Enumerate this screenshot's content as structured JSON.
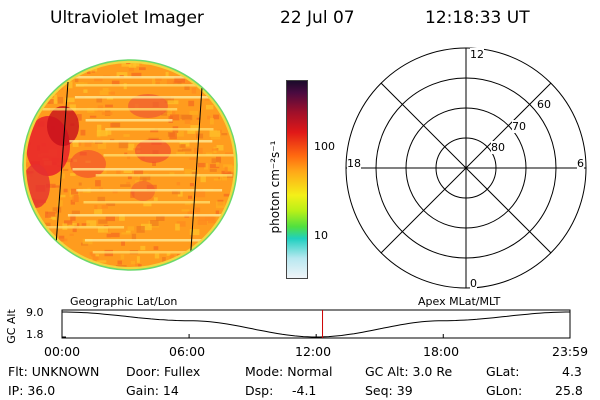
{
  "header": {
    "instrument": "Ultraviolet Imager",
    "date": "22 Jul 07",
    "time": "12:18:33 UT"
  },
  "colorbar": {
    "unit_label": "photon cm⁻²s⁻¹",
    "tick_labels": [
      "100",
      "10"
    ],
    "scale": "log"
  },
  "polar_plot": {
    "mlt_labels": {
      "top": "12",
      "bottom": "0",
      "left": "18",
      "right": "6"
    },
    "lat_labels": [
      "60",
      "70",
      "80"
    ]
  },
  "altitude_strip": {
    "left_title": "Geographic Lat/Lon",
    "right_title": "Apex MLat/MLT",
    "ylabel": "GC Alt",
    "y_ticks": [
      "9.0",
      "1.8"
    ],
    "x_ticks": [
      "00:00",
      "06:00",
      "12:00",
      "18:00",
      "23:59"
    ],
    "current_marker_color": "#cc0000"
  },
  "chart_data": {
    "type": "line",
    "title": "",
    "xlabel": "",
    "ylabel": "GC Alt",
    "x": [
      "00:00",
      "06:00",
      "12:00",
      "18:00",
      "23:59"
    ],
    "series": [
      {
        "values": [
          9.0,
          6.5,
          1.8,
          6.5,
          9.0
        ]
      }
    ],
    "ylim": [
      1.8,
      9.0
    ]
  },
  "status": {
    "flt": "Flt: UNKNOWN",
    "door": "Door: Fullex",
    "mode": "Mode: Normal",
    "gc_alt": "GC Alt: 3.0 Re",
    "glat": "GLat:",
    "glat_value": "4.3",
    "ip": "IP: 36.0",
    "gain": "Gain: 14",
    "dsp": "Dsp:",
    "dsp_value": "-4.1",
    "seq": "Seq: 39",
    "glon": "GLon:",
    "glon_value": "25.8"
  }
}
